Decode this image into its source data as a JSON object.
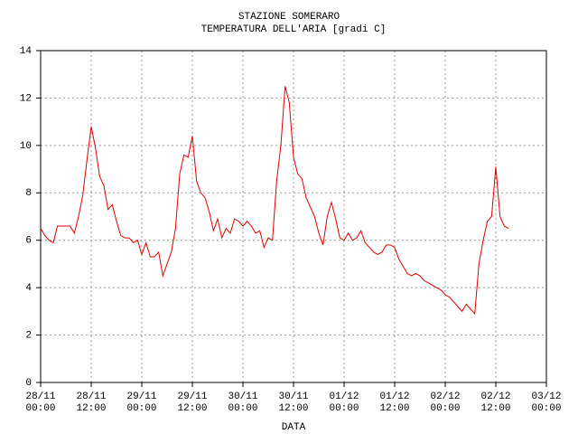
{
  "chart_data": {
    "type": "line",
    "title": "STAZIONE SOMERARO",
    "subtitle": "TEMPERATURA DELL'ARIA [gradi C]",
    "x_label": "DATA",
    "x": [
      "28/11 00:00",
      "28/11 01:00",
      "28/11 02:00",
      "28/11 03:00",
      "28/11 04:00",
      "28/11 05:00",
      "28/11 06:00",
      "28/11 07:00",
      "28/11 08:00",
      "28/11 09:00",
      "28/11 10:00",
      "28/11 11:00",
      "28/11 12:00",
      "28/11 13:00",
      "28/11 14:00",
      "28/11 15:00",
      "28/11 16:00",
      "28/11 17:00",
      "28/11 18:00",
      "28/11 19:00",
      "28/11 20:00",
      "28/11 21:00",
      "28/11 22:00",
      "28/11 23:00",
      "29/11 00:00",
      "29/11 01:00",
      "29/11 02:00",
      "29/11 03:00",
      "29/11 04:00",
      "29/11 05:00",
      "29/11 06:00",
      "29/11 07:00",
      "29/11 08:00",
      "29/11 09:00",
      "29/11 10:00",
      "29/11 11:00",
      "29/11 12:00",
      "29/11 13:00",
      "29/11 14:00",
      "29/11 15:00",
      "29/11 16:00",
      "29/11 17:00",
      "29/11 18:00",
      "29/11 19:00",
      "29/11 20:00",
      "29/11 21:00",
      "29/11 22:00",
      "29/11 23:00",
      "30/11 00:00",
      "30/11 01:00",
      "30/11 02:00",
      "30/11 03:00",
      "30/11 04:00",
      "30/11 05:00",
      "30/11 06:00",
      "30/11 07:00",
      "30/11 08:00",
      "30/11 09:00",
      "30/11 10:00",
      "30/11 11:00",
      "30/11 12:00",
      "30/11 13:00",
      "30/11 14:00",
      "30/11 15:00",
      "30/11 16:00",
      "30/11 17:00",
      "30/11 18:00",
      "30/11 19:00",
      "30/11 20:00",
      "30/11 21:00",
      "30/11 22:00",
      "30/11 23:00",
      "01/12 00:00",
      "01/12 01:00",
      "01/12 02:00",
      "01/12 03:00",
      "01/12 04:00",
      "01/12 05:00",
      "01/12 06:00",
      "01/12 07:00",
      "01/12 08:00",
      "01/12 09:00",
      "01/12 10:00",
      "01/12 11:00",
      "01/12 12:00",
      "01/12 13:00",
      "01/12 14:00",
      "01/12 15:00",
      "01/12 16:00",
      "01/12 17:00",
      "01/12 18:00",
      "01/12 19:00",
      "01/12 20:00",
      "01/12 21:00",
      "01/12 22:00",
      "01/12 23:00",
      "02/12 00:00",
      "02/12 01:00",
      "02/12 02:00",
      "02/12 03:00",
      "02/12 04:00",
      "02/12 05:00",
      "02/12 06:00",
      "02/12 07:00",
      "02/12 08:00",
      "02/12 09:00",
      "02/12 10:00",
      "02/12 11:00",
      "02/12 12:00",
      "02/12 13:00",
      "02/12 14:00",
      "02/12 15:00"
    ],
    "series": [
      {
        "color": "#e00000",
        "values": [
          6.5,
          6.2,
          6.0,
          5.9,
          6.6,
          6.6,
          6.6,
          6.6,
          6.3,
          7.0,
          7.9,
          9.4,
          10.8,
          9.9,
          8.7,
          8.3,
          7.3,
          7.5,
          6.8,
          6.2,
          6.1,
          6.1,
          5.9,
          6.0,
          5.4,
          5.9,
          5.3,
          5.3,
          5.5,
          4.5,
          5.0,
          5.5,
          6.5,
          8.8,
          9.6,
          9.5,
          10.4,
          8.5,
          8.0,
          7.8,
          7.2,
          6.4,
          6.9,
          6.1,
          6.5,
          6.3,
          6.9,
          6.8,
          6.6,
          6.8,
          6.6,
          6.3,
          6.4,
          5.7,
          6.1,
          6.0,
          8.5,
          10.0,
          12.5,
          11.8,
          9.5,
          8.8,
          8.6,
          7.8,
          7.4,
          7.0,
          6.3,
          5.8,
          7.0,
          7.6,
          6.9,
          6.1,
          6.0,
          6.3,
          6.0,
          6.1,
          6.4,
          5.9,
          5.7,
          5.5,
          5.4,
          5.5,
          5.8,
          5.8,
          5.7,
          5.2,
          4.9,
          4.6,
          4.5,
          4.6,
          4.5,
          4.3,
          4.2,
          4.1,
          4.0,
          3.9,
          3.7,
          3.6,
          3.4,
          3.2,
          3.0,
          3.3,
          3.1,
          2.9,
          5.0,
          6.0,
          6.8,
          7.0,
          9.1,
          7.0,
          6.6,
          6.5
        ]
      }
    ],
    "xlim": [
      "28/11 00:00",
      "03/12 00:00"
    ],
    "xticks": [
      {
        "value": "28/11 00:00",
        "label": "28/11\n00:00"
      },
      {
        "value": "28/11 12:00",
        "label": "28/11\n12:00"
      },
      {
        "value": "29/11 00:00",
        "label": "29/11\n00:00"
      },
      {
        "value": "29/11 12:00",
        "label": "29/11\n12:00"
      },
      {
        "value": "30/11 00:00",
        "label": "30/11\n00:00"
      },
      {
        "value": "30/11 12:00",
        "label": "30/11\n12:00"
      },
      {
        "value": "01/12 00:00",
        "label": "01/12\n00:00"
      },
      {
        "value": "01/12 12:00",
        "label": "01/12\n12:00"
      },
      {
        "value": "02/12 00:00",
        "label": "02/12\n00:00"
      },
      {
        "value": "02/12 12:00",
        "label": "02/12\n12:00"
      },
      {
        "value": "03/12 00:00",
        "label": "03/12\n00:00"
      }
    ],
    "ylim": [
      0,
      14
    ],
    "yticks": [
      0,
      2,
      4,
      6,
      8,
      10,
      12,
      14
    ],
    "grid": true
  }
}
